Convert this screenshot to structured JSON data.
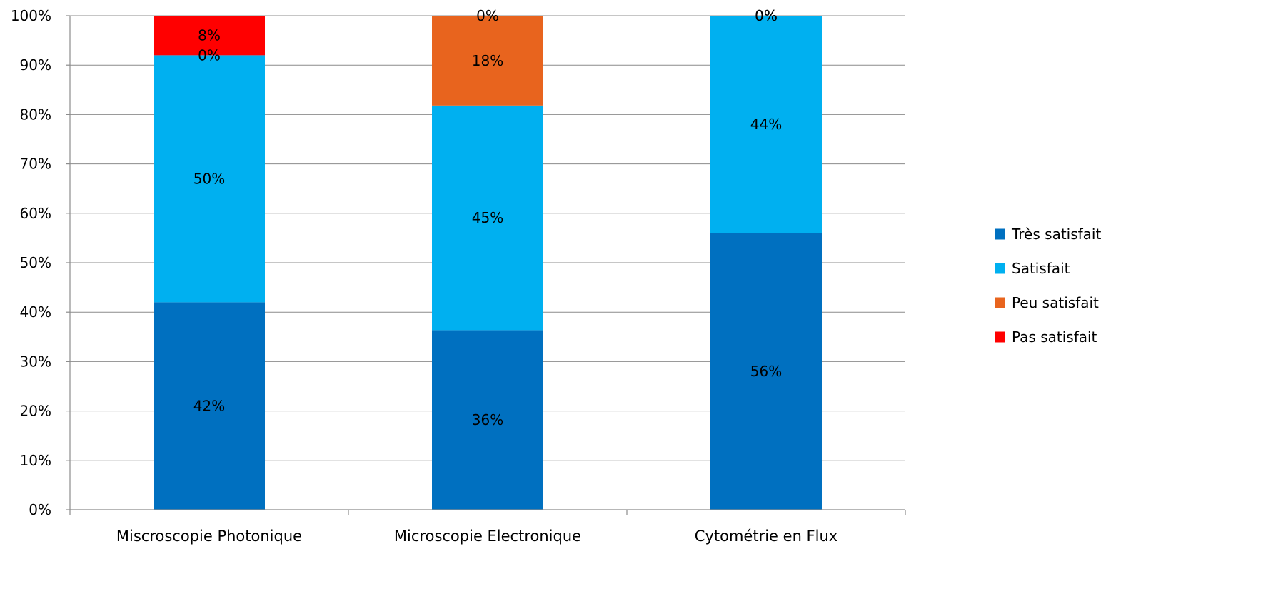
{
  "chart_data": {
    "type": "bar",
    "stacked": true,
    "percent_stacked": true,
    "categories": [
      "Miscroscopie Photonique",
      "Microscopie Electronique",
      "Cytométrie en Flux"
    ],
    "series": [
      {
        "name": "Très satisfait",
        "color": "#0070c0",
        "values": [
          42,
          36,
          56
        ],
        "labels": [
          "42%",
          "36%",
          "56%"
        ]
      },
      {
        "name": "Satisfait",
        "color": "#00b0f0",
        "values": [
          50,
          45,
          44
        ],
        "labels": [
          "50%",
          "45%",
          "44%"
        ]
      },
      {
        "name": "Peu satisfait",
        "color": "#e8641e",
        "values": [
          0,
          18,
          0
        ],
        "labels": [
          "0%",
          "18%",
          "0%"
        ]
      },
      {
        "name": "Pas satisfait",
        "color": "#ff0000",
        "values": [
          8,
          0,
          0
        ],
        "labels": [
          "8%",
          "0%",
          "0%"
        ]
      }
    ],
    "yticks": [
      "0%",
      "10%",
      "20%",
      "30%",
      "40%",
      "50%",
      "60%",
      "70%",
      "80%",
      "90%",
      "100%"
    ],
    "ylim": [
      0,
      100
    ],
    "grid": true,
    "legend_position": "right"
  }
}
